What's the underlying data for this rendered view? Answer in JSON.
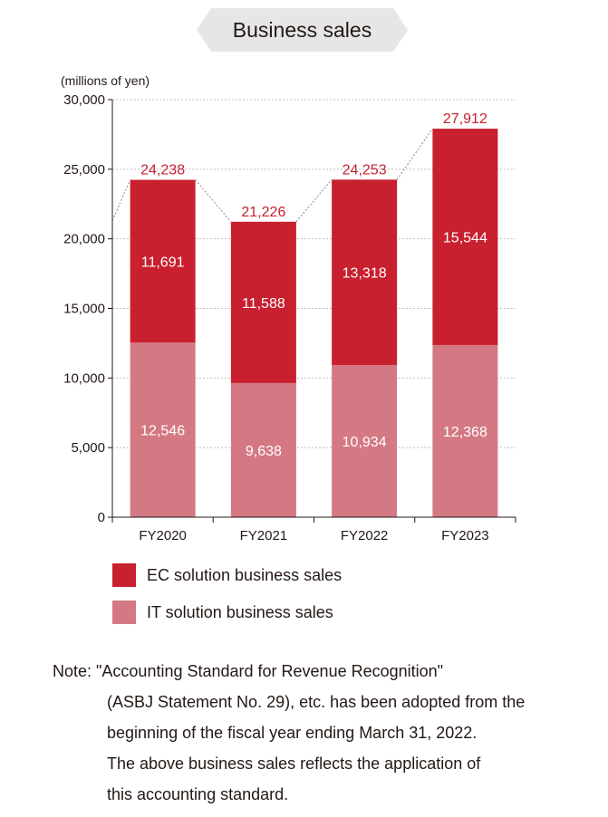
{
  "title": "Business sales",
  "colors": {
    "ec": "#C8202F",
    "it": "#D47983",
    "grid": "#BFBFBF",
    "axis": "#231815",
    "total": "#C8202F",
    "banner": "#E6E6E6"
  },
  "chart_data": {
    "type": "bar",
    "stacked": true,
    "unit_label": "(millions of yen)",
    "categories": [
      "FY2020",
      "FY2021",
      "FY2022",
      "FY2023"
    ],
    "series": [
      {
        "name": "IT solution business sales",
        "values": [
          12546,
          9638,
          10934,
          12368
        ],
        "value_labels": [
          "12,546",
          "9,638",
          "10,934",
          "12,368"
        ]
      },
      {
        "name": "EC solution business sales",
        "values": [
          11691,
          11588,
          13318,
          15544
        ],
        "value_labels": [
          "11,691",
          "11,588",
          "13,318",
          "15,544"
        ]
      }
    ],
    "totals": [
      24238,
      21226,
      24253,
      27912
    ],
    "total_labels": [
      "24,238",
      "21,226",
      "24,253",
      "27,912"
    ],
    "ylim": [
      0,
      30000
    ],
    "yticks": [
      0,
      5000,
      10000,
      15000,
      20000,
      25000,
      30000
    ],
    "ytick_labels": [
      "0",
      "5,000",
      "10,000",
      "15,000",
      "20,000",
      "25,000",
      "30,000"
    ],
    "grid": true,
    "grid_style": "dotted",
    "legend_position": "bottom"
  },
  "legend": {
    "ec_label": "EC solution business sales",
    "it_label": "IT solution business sales"
  },
  "note": {
    "lines": [
      "Note: \"Accounting Standard for Revenue Recognition\"",
      "(ASBJ Statement No. 29), etc. has been adopted from the",
      "beginning of the fiscal year ending March 31, 2022.",
      "The above business sales reflects the application of",
      "this accounting standard."
    ]
  }
}
